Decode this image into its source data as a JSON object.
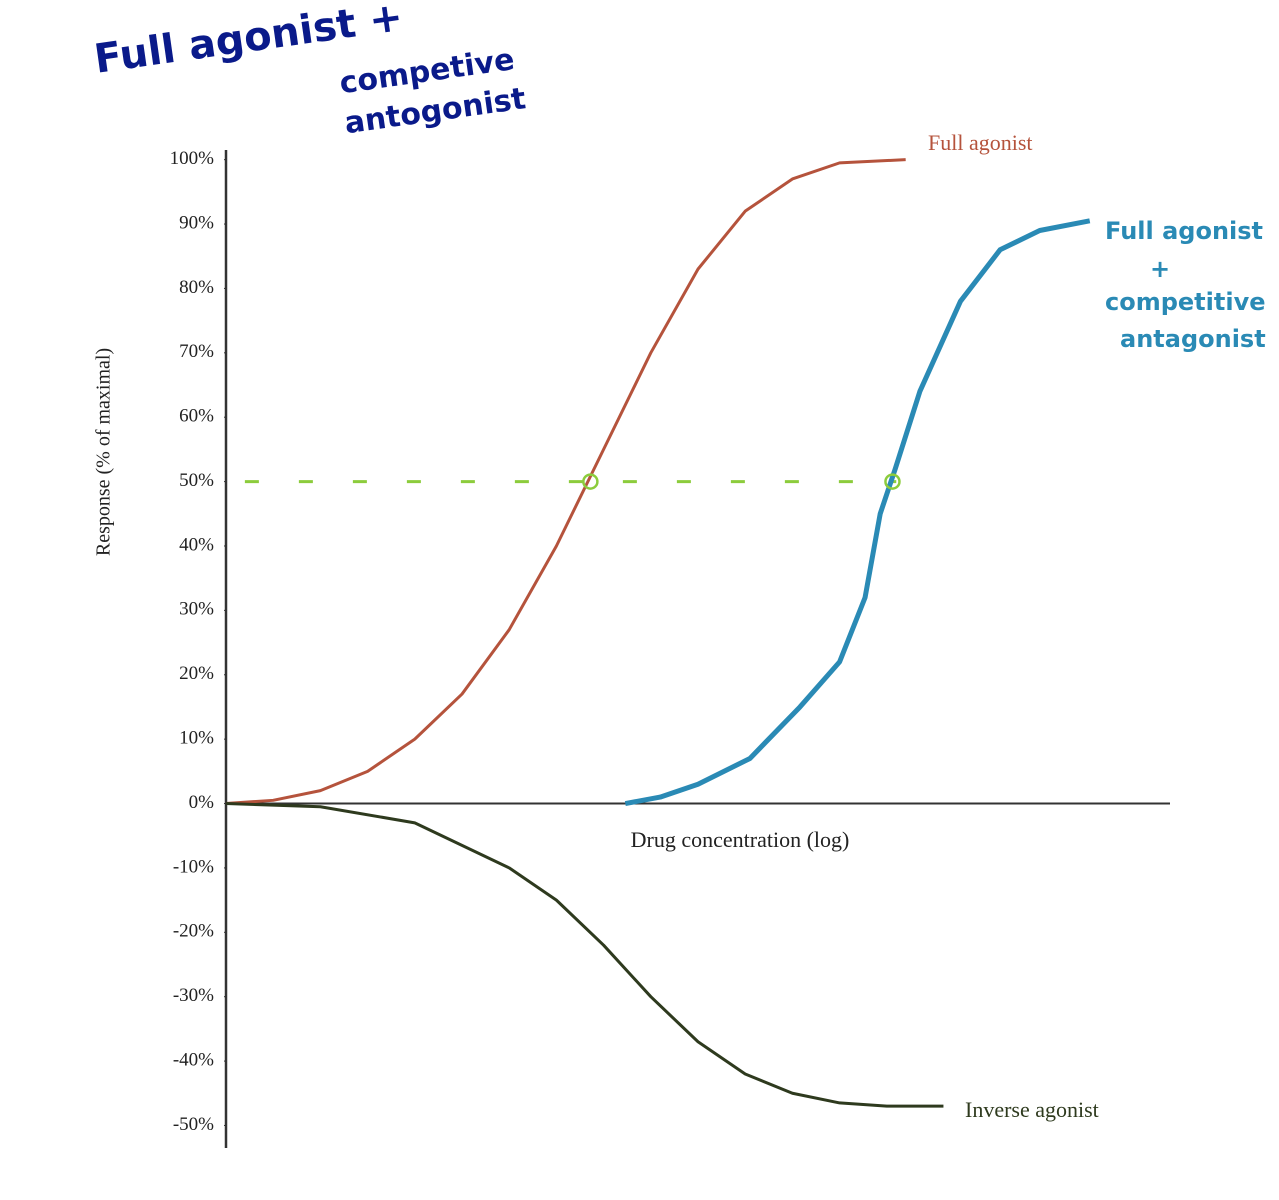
{
  "chart_data": {
    "type": "line",
    "x_label": "Drug concentration (log)",
    "y_label": "Response (% of maximal)",
    "xlim": [
      0,
      10
    ],
    "ylim": [
      -53.5,
      101.5
    ],
    "yticks": [
      {
        "value": 100,
        "label": "100%"
      },
      {
        "value": 90,
        "label": "90%"
      },
      {
        "value": 80,
        "label": "80%"
      },
      {
        "value": 70,
        "label": "70%"
      },
      {
        "value": 60,
        "label": "60%"
      },
      {
        "value": 50,
        "label": "50%"
      },
      {
        "value": 40,
        "label": "40%"
      },
      {
        "value": 30,
        "label": "30%"
      },
      {
        "value": 20,
        "label": "20%"
      },
      {
        "value": 10,
        "label": "10%"
      },
      {
        "value": 0,
        "label": "0%"
      },
      {
        "value": -10,
        "label": "-10%"
      },
      {
        "value": -20,
        "label": "-20%"
      },
      {
        "value": -30,
        "label": "-30%"
      },
      {
        "value": -40,
        "label": "-40%"
      },
      {
        "value": -50,
        "label": "-50%"
      }
    ],
    "series": [
      {
        "label": [
          "Full agonist"
        ],
        "color": "#b5533c",
        "x": [
          0,
          0.5,
          1,
          1.5,
          2,
          2.5,
          3,
          3.5,
          4,
          4.5,
          5,
          5.5,
          6,
          6.5,
          7.2
        ],
        "values": [
          0,
          0.5,
          2,
          5,
          10,
          17,
          27,
          40,
          55,
          70,
          83,
          92,
          97,
          99.5,
          100
        ]
      },
      {
        "label": [
          "Full agonist",
          "+",
          "competitive",
          "antagonist"
        ],
        "color": "#2a8ab5",
        "x": [
          4.23,
          4.6,
          5.0,
          5.55,
          6.08,
          6.5,
          6.77,
          6.93,
          7.09,
          7.35,
          7.78,
          8.2,
          8.62,
          9.15
        ],
        "values": [
          0,
          1,
          3,
          7,
          15,
          22,
          32,
          45,
          52,
          64,
          78,
          86,
          89,
          90.5
        ]
      },
      {
        "label": [
          "Inverse agonist"
        ],
        "color": "#2e3a1e",
        "x": [
          0,
          1,
          2,
          3,
          3.5,
          4,
          4.5,
          5,
          5.5,
          6,
          6.5,
          7,
          7.6
        ],
        "values": [
          0,
          -0.5,
          -3,
          -10,
          -15,
          -22,
          -30,
          -37,
          -42,
          -45,
          -46.5,
          -47,
          -47
        ]
      }
    ],
    "reference_line": {
      "y": 50,
      "x": [
        0.2,
        7.1
      ],
      "color": "#8ccc3c"
    },
    "markers": {
      "x": [
        3.86,
        7.06
      ],
      "y": [
        50,
        50
      ],
      "color": "#8ccc3c"
    },
    "annotation": [
      "Full agonist +",
      "competive",
      "antogonist"
    ],
    "annotation_color": "#0a1a8a"
  }
}
